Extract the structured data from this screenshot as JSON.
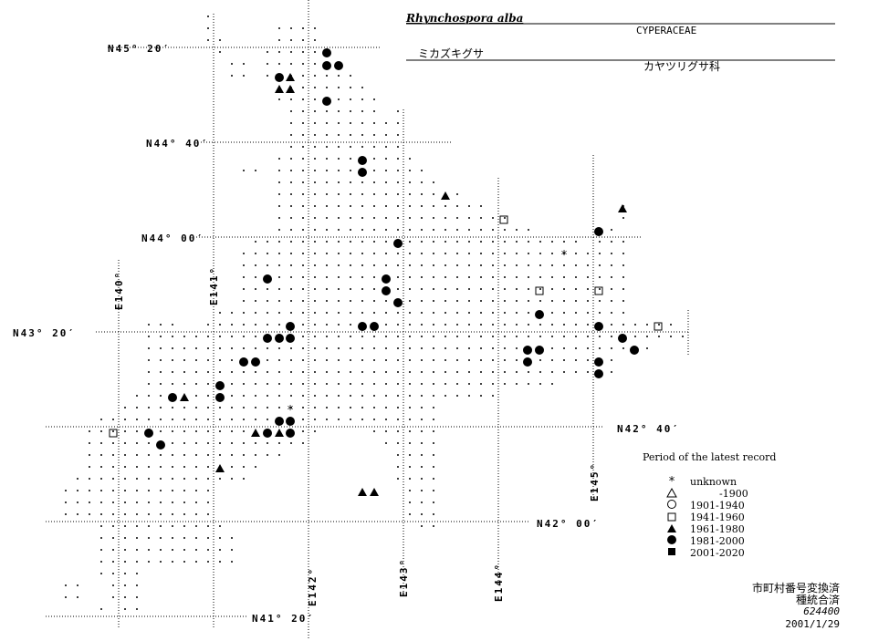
{
  "header": {
    "scientific_name": "Rhynchospora alba",
    "family": "CYPERACEAE",
    "japanese_name": "ミカズキグサ",
    "japanese_family": "カヤツリグサ科"
  },
  "latitude_labels": [
    "N45° 20′",
    "N44° 40′",
    "N44° 00′",
    "N43° 20′",
    "N42° 40′",
    "N42° 00′",
    "N41° 20′"
  ],
  "longitude_labels": [
    "E140°",
    "E141°",
    "E142°",
    "E143°",
    "E144°",
    "E145°"
  ],
  "legend": {
    "title": "Period of the latest record",
    "items": [
      "unknown",
      "-1900",
      "1901-1940",
      "1941-1960",
      "1961-1980",
      "1981-2000",
      "2001-2020"
    ]
  },
  "footer": [
    "市町村番号変換済",
    "種統合済",
    "624400",
    "2001/1/29"
  ]
}
